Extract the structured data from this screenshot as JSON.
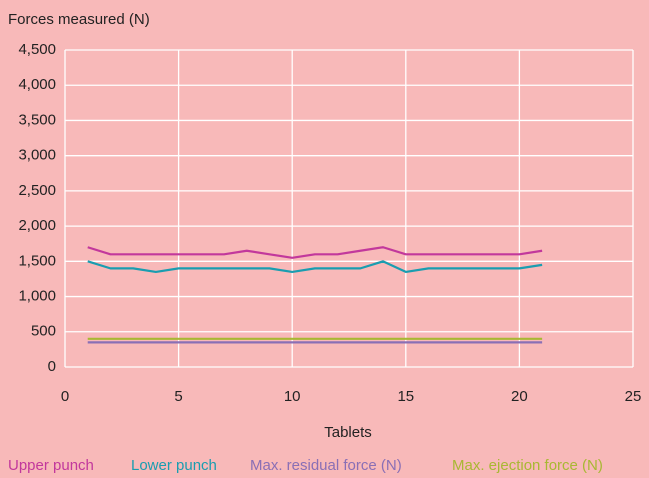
{
  "chart_data": {
    "type": "line",
    "ylabel": "Forces measured (N)",
    "xlabel": "Tablets",
    "x": [
      1,
      2,
      3,
      4,
      5,
      6,
      7,
      8,
      9,
      10,
      11,
      12,
      13,
      14,
      15,
      16,
      17,
      18,
      19,
      20,
      21
    ],
    "series": [
      {
        "name": "Upper punch",
        "color": "#c2389c",
        "values": [
          1700,
          1600,
          1600,
          1600,
          1600,
          1600,
          1600,
          1650,
          1600,
          1550,
          1600,
          1600,
          1650,
          1700,
          1600,
          1600,
          1600,
          1600,
          1600,
          1600,
          1650
        ]
      },
      {
        "name": "Lower punch",
        "color": "#1a9db0",
        "values": [
          1500,
          1400,
          1400,
          1350,
          1400,
          1400,
          1400,
          1400,
          1400,
          1350,
          1400,
          1400,
          1400,
          1500,
          1350,
          1400,
          1400,
          1400,
          1400,
          1400,
          1450
        ]
      },
      {
        "name": "Max. residual force (N)",
        "color": "#8a6fb5",
        "values": [
          350,
          350,
          350,
          350,
          350,
          350,
          350,
          350,
          350,
          350,
          350,
          350,
          350,
          350,
          350,
          350,
          350,
          350,
          350,
          350,
          350
        ]
      },
      {
        "name": "Max. ejection force (N)",
        "color": "#a8b833",
        "values": [
          400,
          400,
          400,
          400,
          400,
          400,
          400,
          400,
          400,
          400,
          400,
          400,
          400,
          400,
          400,
          400,
          400,
          400,
          400,
          400,
          400
        ]
      }
    ],
    "xlim": [
      0,
      25
    ],
    "xticks": [
      0,
      5,
      10,
      15,
      20,
      25
    ],
    "ylim": [
      0,
      4500
    ],
    "yticks": [
      0,
      500,
      {
        "value": 1000,
        "label": "1,000"
      },
      {
        "value": 1500,
        "label": "1,500"
      },
      {
        "value": 2000,
        "label": "2,000"
      },
      {
        "value": 2500,
        "label": "2,500"
      },
      {
        "value": 3000,
        "label": "3,000"
      },
      {
        "value": 3500,
        "label": "3,500"
      },
      {
        "value": 4000,
        "label": "4,000"
      },
      {
        "value": 4500,
        "label": "4,500"
      }
    ],
    "grid": true
  }
}
